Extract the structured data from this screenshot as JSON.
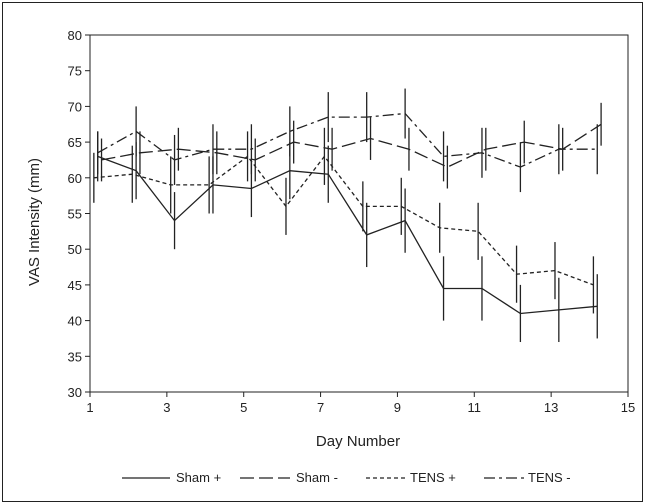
{
  "chart_data": {
    "type": "line",
    "title": "",
    "xlabel": "Day Number",
    "ylabel": "VAS Intensity (mm)",
    "xlim": [
      1,
      15
    ],
    "ylim": [
      30,
      80
    ],
    "xticks": [
      1,
      3,
      5,
      7,
      9,
      11,
      13,
      15
    ],
    "yticks": [
      30,
      35,
      40,
      45,
      50,
      55,
      60,
      65,
      70,
      75,
      80
    ],
    "grid": false,
    "legend_position": "bottom",
    "series": [
      {
        "name": "Sham +",
        "style": "solid",
        "x": [
          1.2,
          2.2,
          3.2,
          4.2,
          5.2,
          6.2,
          7.2,
          8.2,
          9.2,
          10.2,
          11.2,
          12.2,
          13.2,
          14.2
        ],
        "y": [
          63.0,
          61.0,
          54.0,
          59.0,
          58.5,
          61.0,
          60.5,
          52.0,
          54.0,
          44.5,
          44.5,
          41.0,
          41.5,
          42.0
        ],
        "err": [
          3.5,
          4.0,
          4.0,
          4.0,
          4.0,
          4.0,
          4.0,
          4.5,
          4.5,
          4.5,
          4.5,
          4.0,
          4.5,
          4.5
        ]
      },
      {
        "name": "Sham -",
        "style": "longdash",
        "x": [
          1.3,
          2.3,
          3.3,
          4.3,
          5.3,
          6.3,
          7.3,
          8.3,
          9.3,
          10.3,
          11.3,
          12.3,
          13.3,
          14.3
        ],
        "y": [
          62.5,
          63.5,
          64.0,
          63.5,
          62.5,
          65.0,
          64.0,
          65.5,
          64.0,
          61.5,
          64.0,
          65.0,
          64.0,
          67.5
        ],
        "err": [
          3.0,
          3.0,
          3.0,
          3.0,
          3.0,
          3.0,
          3.0,
          3.0,
          3.0,
          3.0,
          3.0,
          3.0,
          3.0,
          3.0
        ]
      },
      {
        "name": "TENS +",
        "style": "shortdash",
        "x": [
          1.1,
          2.1,
          3.1,
          4.1,
          5.1,
          6.1,
          7.1,
          8.1,
          9.1,
          10.1,
          11.1,
          12.1,
          13.1,
          14.1
        ],
        "y": [
          60.0,
          60.5,
          59.0,
          59.0,
          63.0,
          56.0,
          63.0,
          56.0,
          56.0,
          53.0,
          52.5,
          46.5,
          47.0,
          45.0
        ],
        "err": [
          3.5,
          4.0,
          4.0,
          4.0,
          3.5,
          4.0,
          4.0,
          3.5,
          4.0,
          3.5,
          4.0,
          4.0,
          4.0,
          4.0
        ]
      },
      {
        "name": "TENS -",
        "style": "dashdot",
        "x": [
          1.2,
          2.2,
          3.2,
          4.2,
          5.2,
          6.2,
          7.2,
          8.2,
          9.2,
          10.2,
          11.2,
          12.2,
          13.2,
          14.2
        ],
        "y": [
          63.5,
          66.5,
          62.5,
          64.0,
          64.0,
          66.5,
          68.5,
          68.5,
          69.0,
          63.0,
          63.5,
          61.5,
          64.0,
          64.0
        ],
        "err": [
          3.0,
          3.5,
          3.5,
          3.5,
          3.5,
          3.5,
          3.5,
          3.5,
          3.5,
          3.5,
          3.5,
          3.5,
          3.5,
          3.5
        ]
      }
    ]
  }
}
